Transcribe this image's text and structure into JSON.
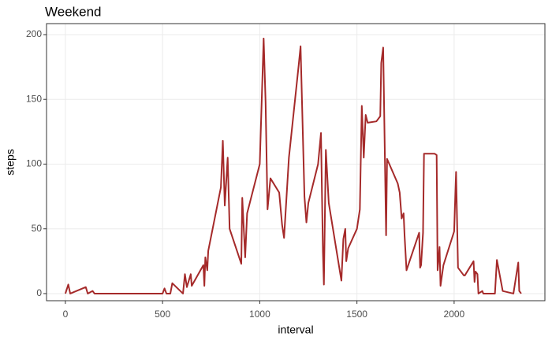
{
  "chart_data": {
    "type": "line",
    "title": "Weekend",
    "x_label": "interval",
    "y_label": "steps",
    "grid": true,
    "color": "#a52a2a",
    "x": [
      0,
      15,
      25,
      105,
      115,
      140,
      150,
      500,
      510,
      520,
      540,
      550,
      605,
      615,
      625,
      645,
      650,
      710,
      715,
      720,
      730,
      735,
      800,
      810,
      820,
      835,
      845,
      905,
      910,
      925,
      935,
      1000,
      1020,
      1030,
      1040,
      1055,
      1100,
      1115,
      1125,
      1150,
      1200,
      1210,
      1230,
      1240,
      1250,
      1300,
      1315,
      1325,
      1330,
      1340,
      1355,
      1420,
      1430,
      1440,
      1445,
      1455,
      1500,
      1515,
      1525,
      1535,
      1545,
      1555,
      1600,
      1620,
      1625,
      1635,
      1650,
      1655,
      1710,
      1720,
      1730,
      1740,
      1745,
      1755,
      1820,
      1825,
      1830,
      1840,
      1845,
      1900,
      1910,
      1915,
      1925,
      1930,
      1945,
      2000,
      2010,
      2020,
      2050,
      2055,
      2100,
      2105,
      2110,
      2120,
      2125,
      2145,
      2150,
      2210,
      2220,
      2235,
      2250,
      2305,
      2330,
      2335,
      2345
    ],
    "values": [
      0,
      7,
      0,
      5,
      0,
      2,
      0,
      0,
      4,
      0,
      0,
      8,
      0,
      15,
      5,
      15,
      6,
      22,
      6,
      28,
      18,
      33,
      82,
      118,
      68,
      105,
      50,
      23,
      74,
      28,
      62,
      100,
      197,
      148,
      65,
      89,
      78,
      53,
      43,
      105,
      176,
      191,
      75,
      55,
      70,
      100,
      124,
      32,
      7,
      111,
      70,
      10,
      42,
      50,
      25,
      35,
      50,
      65,
      145,
      105,
      138,
      132,
      133,
      137,
      178,
      190,
      45,
      104,
      85,
      78,
      58,
      62,
      45,
      18,
      47,
      20,
      22,
      47,
      108,
      108,
      107,
      18,
      36,
      6,
      22,
      48,
      94,
      20,
      14,
      14,
      25,
      9,
      17,
      15,
      0,
      2,
      0,
      0,
      26,
      14,
      2,
      0,
      24,
      2,
      0
    ],
    "xlim": [
      -97,
      2467
    ],
    "xticks": [
      0,
      500,
      1000,
      1500,
      2000
    ],
    "ylim": [
      -5.5,
      208.5
    ],
    "yticks": [
      0,
      50,
      100,
      150,
      200
    ]
  }
}
